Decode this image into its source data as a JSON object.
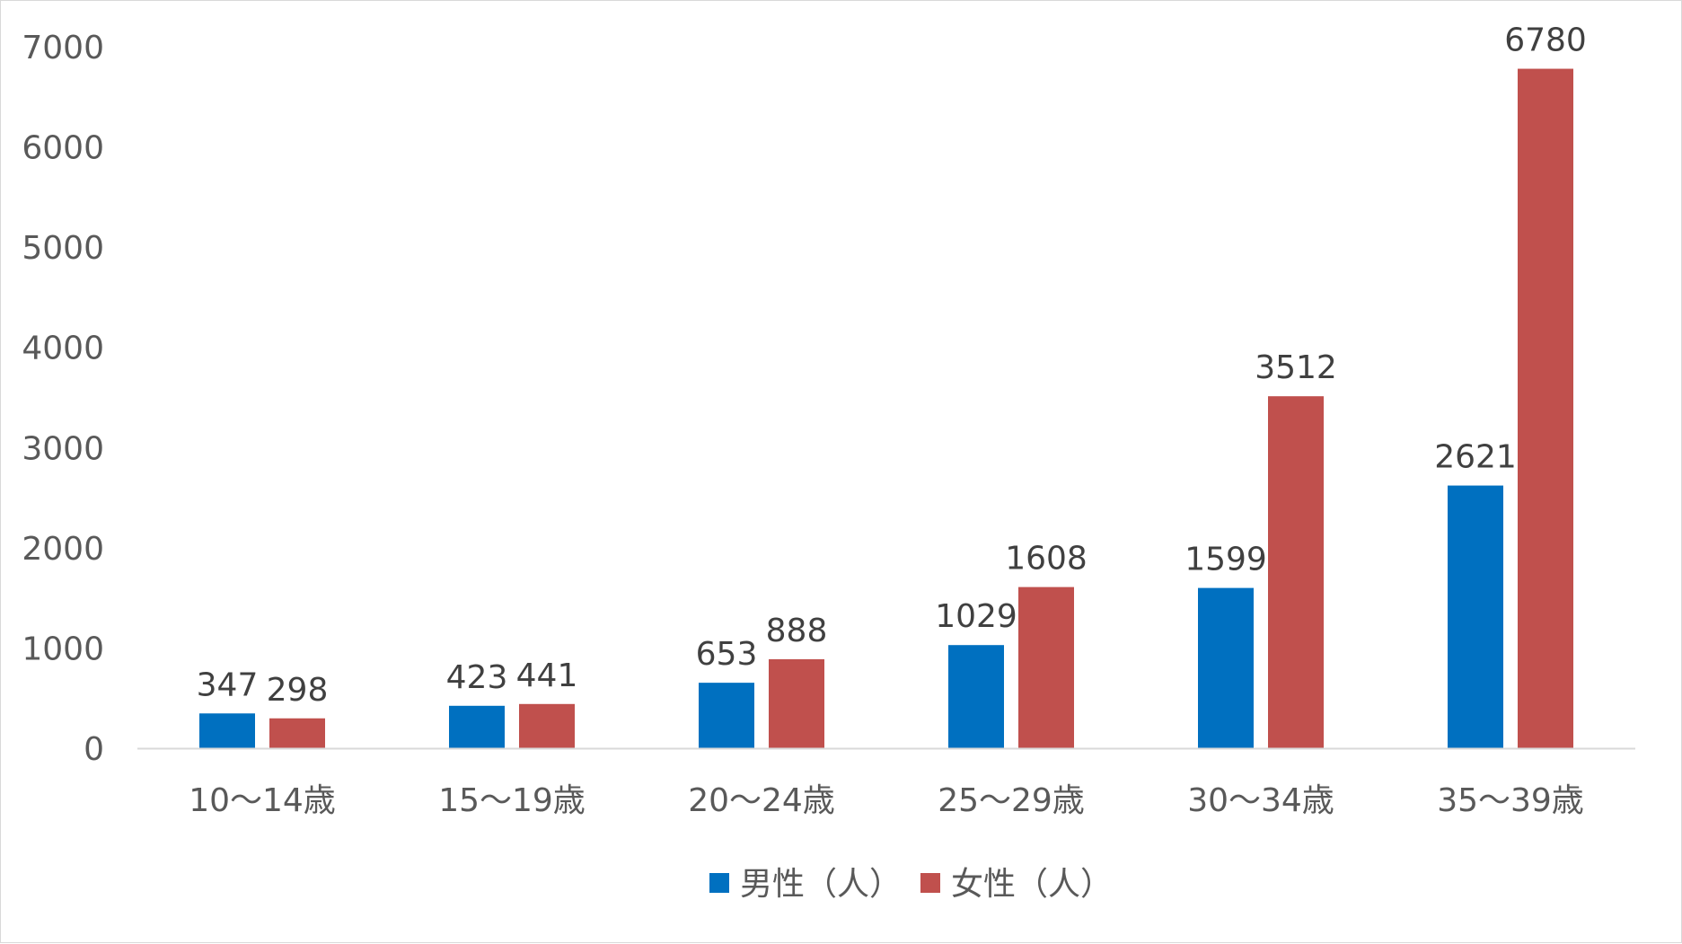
{
  "chart_data": {
    "type": "bar",
    "categories": [
      "10〜14歳",
      "15〜19歳",
      "20〜24歳",
      "25〜29歳",
      "30〜34歳",
      "35〜39歳"
    ],
    "series": [
      {
        "name": "男性（人）",
        "color": "#0070C0",
        "values": [
          347,
          423,
          653,
          1029,
          1599,
          2621
        ]
      },
      {
        "name": "女性（人）",
        "color": "#C0504D",
        "values": [
          298,
          441,
          888,
          1608,
          3512,
          6780
        ]
      }
    ],
    "yticks": [
      0,
      1000,
      2000,
      3000,
      4000,
      5000,
      6000,
      7000
    ],
    "ylim": [
      0,
      7000
    ],
    "grid": false,
    "data_labels": true,
    "legend_position": "bottom-center"
  }
}
